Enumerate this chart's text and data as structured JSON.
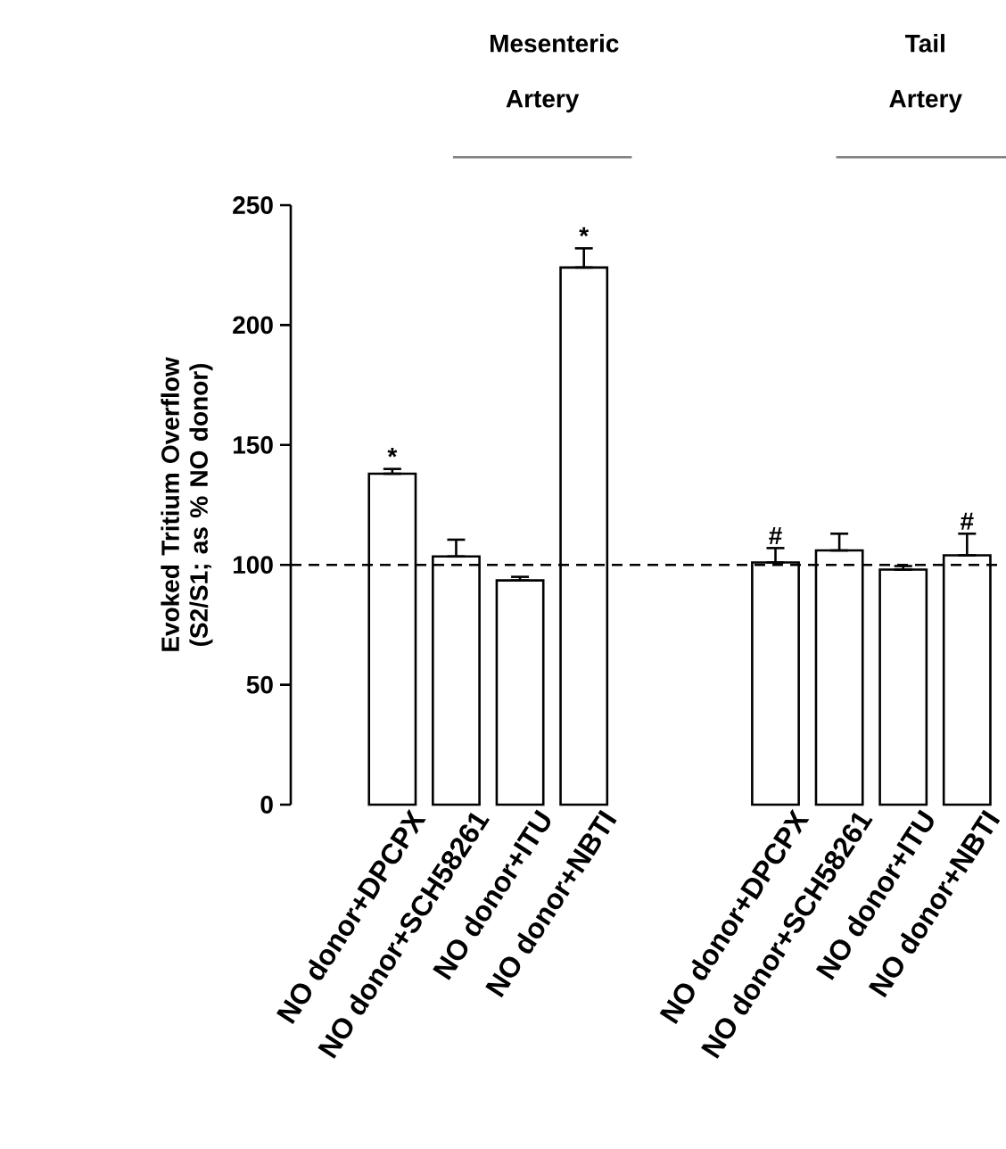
{
  "chart_data": {
    "type": "bar",
    "ylabel": "Evoked Tritium Overflow (S2/S1; as % NO donor)",
    "categories": [
      "NO donor+DPCPX",
      "NO donor+SCH58261",
      "NO donor+ITU",
      "NO donor+NBTI",
      null,
      null,
      "NO donor+DPCPX",
      "NO donor+SCH58261",
      "NO donor+ITU",
      "NO donor+NBTI"
    ],
    "values": [
      138,
      103.5,
      93.5,
      224,
      null,
      null,
      101,
      106,
      98,
      104
    ],
    "errors": [
      [
        138,
        140
      ],
      [
        103.5,
        110.5
      ],
      [
        93.5,
        95
      ],
      [
        224,
        232
      ],
      null,
      null,
      [
        101,
        107
      ],
      [
        106,
        113
      ],
      [
        98,
        99.5
      ],
      [
        104,
        113
      ]
    ],
    "value_labels": [
      "*",
      null,
      null,
      "*",
      null,
      null,
      "#",
      null,
      null,
      "#"
    ],
    "color": "#ffffff",
    "ylim": [
      0,
      250
    ],
    "yticks": [
      0,
      50,
      100,
      150,
      200,
      250
    ],
    "ref_lines": [
      {
        "axis": "y",
        "value": 100,
        "line_style": "dashed",
        "color": "#000000"
      }
    ],
    "annotations": [
      "Mesenteric Artery",
      "Tail Artery"
    ],
    "grid": false
  }
}
